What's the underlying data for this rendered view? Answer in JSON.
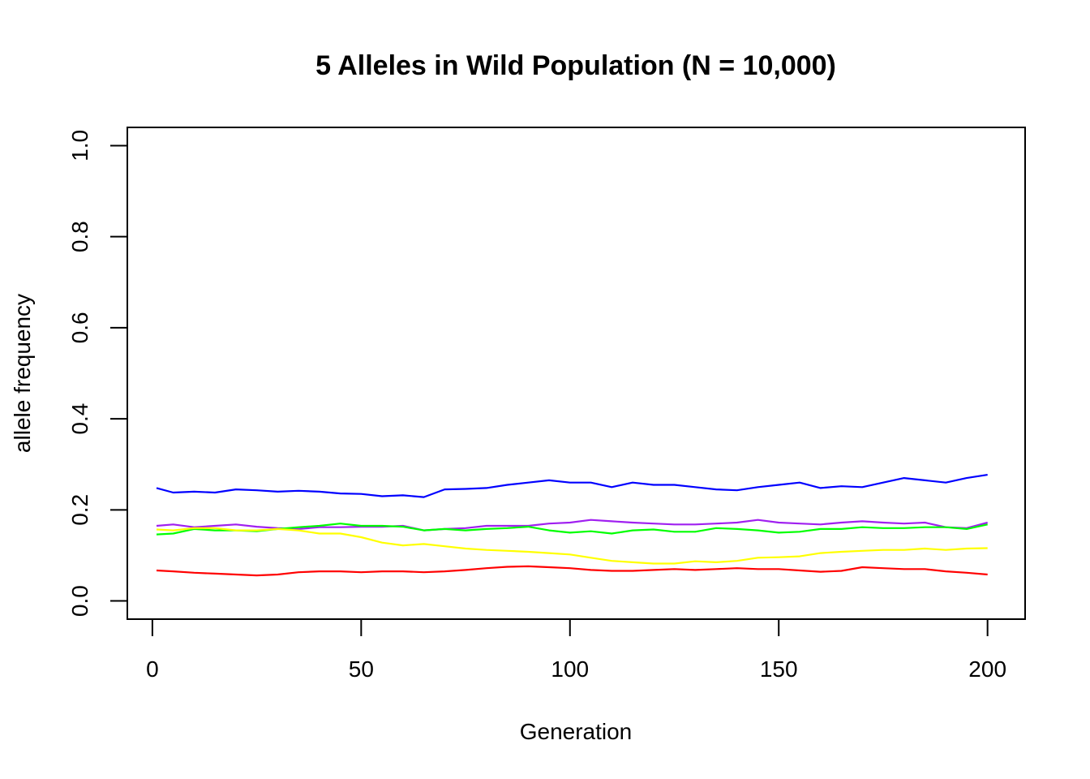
{
  "chart_data": {
    "type": "line",
    "title": "5 Alleles in Wild Population (N = 10,000)",
    "xlabel": "Generation",
    "ylabel": "allele frequency",
    "xlim": [
      -6,
      209
    ],
    "ylim": [
      -0.04,
      1.04
    ],
    "xticks": [
      0,
      50,
      100,
      150,
      200
    ],
    "yticks": [
      0.0,
      0.2,
      0.4,
      0.6,
      0.8,
      1.0
    ],
    "xtick_labels": [
      "0",
      "50",
      "100",
      "150",
      "200"
    ],
    "ytick_labels": [
      "0.0",
      "0.2",
      "0.4",
      "0.6",
      "0.8",
      "1.0"
    ],
    "grid": false,
    "legend": "none",
    "series": [
      {
        "color": "#0000ff",
        "x": [
          1,
          5,
          10,
          15,
          20,
          25,
          30,
          35,
          40,
          45,
          50,
          55,
          60,
          65,
          70,
          75,
          80,
          85,
          90,
          95,
          100,
          105,
          110,
          115,
          120,
          125,
          130,
          135,
          140,
          145,
          150,
          155,
          160,
          165,
          170,
          175,
          180,
          185,
          190,
          195,
          200
        ],
        "y": [
          0.248,
          0.238,
          0.24,
          0.238,
          0.245,
          0.243,
          0.24,
          0.242,
          0.24,
          0.236,
          0.235,
          0.23,
          0.232,
          0.228,
          0.245,
          0.246,
          0.248,
          0.255,
          0.26,
          0.265,
          0.26,
          0.26,
          0.25,
          0.26,
          0.255,
          0.255,
          0.25,
          0.245,
          0.243,
          0.25,
          0.255,
          0.26,
          0.248,
          0.252,
          0.25,
          0.26,
          0.27,
          0.265,
          0.26,
          0.27,
          0.277
        ]
      },
      {
        "color": "#a020f0",
        "x": [
          1,
          5,
          10,
          15,
          20,
          25,
          30,
          35,
          40,
          45,
          50,
          55,
          60,
          65,
          70,
          75,
          80,
          85,
          90,
          95,
          100,
          105,
          110,
          115,
          120,
          125,
          130,
          135,
          140,
          145,
          150,
          155,
          160,
          165,
          170,
          175,
          180,
          185,
          190,
          195,
          200
        ],
        "y": [
          0.165,
          0.168,
          0.162,
          0.165,
          0.168,
          0.163,
          0.16,
          0.158,
          0.162,
          0.162,
          0.163,
          0.163,
          0.165,
          0.155,
          0.158,
          0.16,
          0.165,
          0.165,
          0.165,
          0.17,
          0.172,
          0.178,
          0.175,
          0.172,
          0.17,
          0.168,
          0.168,
          0.17,
          0.172,
          0.178,
          0.172,
          0.17,
          0.168,
          0.172,
          0.175,
          0.172,
          0.17,
          0.172,
          0.162,
          0.16,
          0.172
        ]
      },
      {
        "color": "#00ff00",
        "x": [
          1,
          5,
          10,
          15,
          20,
          25,
          30,
          35,
          40,
          45,
          50,
          55,
          60,
          65,
          70,
          75,
          80,
          85,
          90,
          95,
          100,
          105,
          110,
          115,
          120,
          125,
          130,
          135,
          140,
          145,
          150,
          155,
          160,
          165,
          170,
          175,
          180,
          185,
          190,
          195,
          200
        ],
        "y": [
          0.146,
          0.148,
          0.158,
          0.155,
          0.155,
          0.153,
          0.158,
          0.162,
          0.165,
          0.17,
          0.165,
          0.165,
          0.163,
          0.155,
          0.158,
          0.155,
          0.158,
          0.16,
          0.163,
          0.155,
          0.15,
          0.153,
          0.148,
          0.155,
          0.157,
          0.152,
          0.152,
          0.16,
          0.158,
          0.155,
          0.15,
          0.152,
          0.158,
          0.158,
          0.162,
          0.16,
          0.16,
          0.162,
          0.162,
          0.158,
          0.168
        ]
      },
      {
        "color": "#ffff00",
        "x": [
          1,
          5,
          10,
          15,
          20,
          25,
          30,
          35,
          40,
          45,
          50,
          55,
          60,
          65,
          70,
          75,
          80,
          85,
          90,
          95,
          100,
          105,
          110,
          115,
          120,
          125,
          130,
          135,
          140,
          145,
          150,
          155,
          160,
          165,
          170,
          175,
          180,
          185,
          190,
          195,
          200
        ],
        "y": [
          0.157,
          0.155,
          0.16,
          0.16,
          0.155,
          0.155,
          0.158,
          0.155,
          0.148,
          0.148,
          0.14,
          0.128,
          0.122,
          0.125,
          0.12,
          0.115,
          0.112,
          0.11,
          0.108,
          0.105,
          0.102,
          0.095,
          0.088,
          0.085,
          0.082,
          0.082,
          0.087,
          0.085,
          0.088,
          0.095,
          0.096,
          0.098,
          0.105,
          0.108,
          0.11,
          0.112,
          0.112,
          0.115,
          0.112,
          0.115,
          0.116
        ]
      },
      {
        "color": "#ff0000",
        "x": [
          1,
          5,
          10,
          15,
          20,
          25,
          30,
          35,
          40,
          45,
          50,
          55,
          60,
          65,
          70,
          75,
          80,
          85,
          90,
          95,
          100,
          105,
          110,
          115,
          120,
          125,
          130,
          135,
          140,
          145,
          150,
          155,
          160,
          165,
          170,
          175,
          180,
          185,
          190,
          195,
          200
        ],
        "y": [
          0.067,
          0.065,
          0.062,
          0.06,
          0.058,
          0.056,
          0.058,
          0.063,
          0.065,
          0.065,
          0.063,
          0.065,
          0.065,
          0.063,
          0.065,
          0.068,
          0.072,
          0.075,
          0.076,
          0.074,
          0.072,
          0.068,
          0.066,
          0.066,
          0.068,
          0.07,
          0.068,
          0.07,
          0.072,
          0.07,
          0.07,
          0.067,
          0.064,
          0.066,
          0.074,
          0.072,
          0.07,
          0.07,
          0.065,
          0.062,
          0.058
        ]
      }
    ]
  }
}
